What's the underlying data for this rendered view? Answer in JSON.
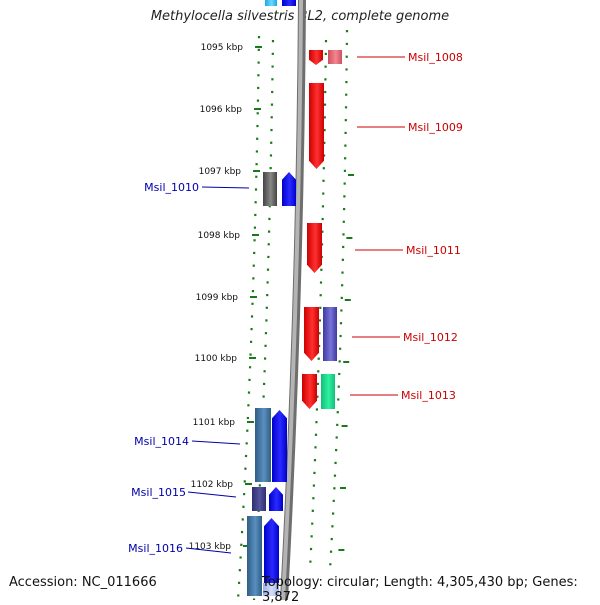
{
  "title": "Methylocella silvestris BL2, complete genome",
  "accession": "Accession: NC_011666",
  "topology": "Topology: circular; Length: 4,305,430 bp; Genes: 3,872",
  "colors": {
    "red": "#ff0000",
    "blue": "#0000ff",
    "label_red": "#cc0000",
    "label_blue": "#0000aa",
    "backbone": "#8c8c8c",
    "tick": "#1a7a1a"
  },
  "tick_labels": [
    "1095 kbp",
    "1096 kbp",
    "1097 kbp",
    "1098 kbp",
    "1099 kbp",
    "1100 kbp",
    "1101 kbp",
    "1102 kbp",
    "1103 kbp"
  ],
  "genes": [
    {
      "name": "Msil_1008",
      "strand": "+"
    },
    {
      "name": "Msil_1009",
      "strand": "+"
    },
    {
      "name": "Msil_1010",
      "strand": "-"
    },
    {
      "name": "Msil_1011",
      "strand": "+"
    },
    {
      "name": "Msil_1012",
      "strand": "+"
    },
    {
      "name": "Msil_1013",
      "strand": "+"
    },
    {
      "name": "Msil_1014",
      "strand": "-"
    },
    {
      "name": "Msil_1015",
      "strand": "-"
    },
    {
      "name": "Msil_1016",
      "strand": "-"
    }
  ]
}
